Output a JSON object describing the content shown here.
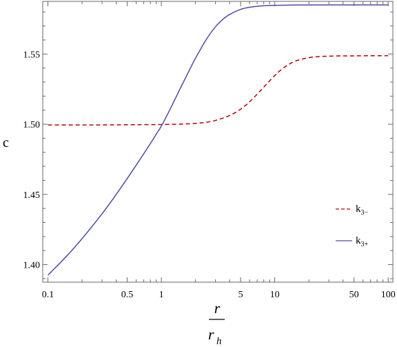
{
  "chart_data": {
    "type": "line",
    "x_scale": "log",
    "xlim": [
      0.09,
      110
    ],
    "ylim": [
      1.3875,
      1.5875
    ],
    "ylabel": "c",
    "xlabel": {
      "numerator": "r",
      "denominator": "r",
      "denominator_subscript": "h"
    },
    "x_ticks": [
      {
        "value": 0.1,
        "label": "0.1"
      },
      {
        "value": 0.5,
        "label": "0.5"
      },
      {
        "value": 1,
        "label": "1"
      },
      {
        "value": 5,
        "label": "5"
      },
      {
        "value": 10,
        "label": "10"
      },
      {
        "value": 50,
        "label": "50"
      },
      {
        "value": 100,
        "label": "100"
      }
    ],
    "y_ticks": [
      {
        "value": 1.4,
        "label": "1.40"
      },
      {
        "value": 1.45,
        "label": "1.45"
      },
      {
        "value": 1.5,
        "label": "1.50"
      },
      {
        "value": 1.55,
        "label": "1.55"
      }
    ],
    "legend_position": "right",
    "grid": false,
    "series": [
      {
        "name": "k",
        "name_subscript": "3−",
        "color": "#b30000",
        "dash": "dashed",
        "x": [
          0.1,
          0.2,
          0.3,
          0.5,
          0.7,
          1,
          1.5,
          2,
          2.5,
          3,
          4,
          5,
          6,
          7,
          8,
          10,
          12,
          15,
          20,
          25,
          30,
          40,
          50,
          70,
          100
        ],
        "y": [
          1.4995,
          1.4995,
          1.4995,
          1.4996,
          1.4997,
          1.4998,
          1.5001,
          1.5006,
          1.5014,
          1.5027,
          1.5062,
          1.5107,
          1.516,
          1.5214,
          1.5264,
          1.5347,
          1.5402,
          1.5448,
          1.5474,
          1.5482,
          1.5485,
          1.5487,
          1.5487,
          1.5488,
          1.5488
        ]
      },
      {
        "name": "k",
        "name_subscript": "3+",
        "color": "#4b4aa6",
        "dash": "solid",
        "x": [
          0.1,
          0.15,
          0.2,
          0.3,
          0.4,
          0.5,
          0.6,
          0.7,
          0.8,
          0.9,
          1,
          1.2,
          1.5,
          1.8,
          2,
          2.5,
          3,
          3.5,
          4,
          5,
          6,
          7,
          8,
          10,
          15,
          20,
          30,
          50,
          100
        ],
        "y": [
          1.3925,
          1.407,
          1.4185,
          1.4362,
          1.45,
          1.4613,
          1.4708,
          1.479,
          1.4862,
          1.4928,
          1.4987,
          1.511,
          1.527,
          1.5398,
          1.547,
          1.5606,
          1.5694,
          1.5748,
          1.5782,
          1.5818,
          1.5833,
          1.584,
          1.5844,
          1.5847,
          1.5849,
          1.5849,
          1.585,
          1.585,
          1.585
        ]
      }
    ]
  }
}
